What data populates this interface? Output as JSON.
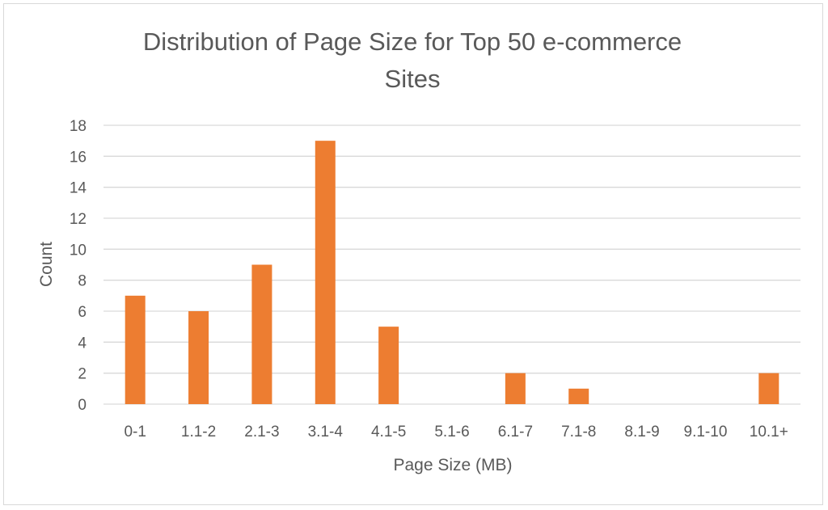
{
  "chart_data": {
    "type": "bar",
    "title_line1": "Distribution of Page Size for Top 50 e-commerce",
    "title_line2": "Sites",
    "xlabel": "Page Size (MB)",
    "ylabel": "Count",
    "categories": [
      "0-1",
      "1.1-2",
      "2.1-3",
      "3.1-4",
      "4.1-5",
      "5.1-6",
      "6.1-7",
      "7.1-8",
      "8.1-9",
      "9.1-10",
      "10.1+"
    ],
    "values": [
      7,
      6,
      9,
      17,
      5,
      0,
      2,
      1,
      0,
      0,
      2
    ],
    "ylim": [
      0,
      18
    ],
    "yticks": [
      0,
      2,
      4,
      6,
      8,
      10,
      12,
      14,
      16,
      18
    ],
    "grid": true,
    "legend": "none",
    "bar_color": "#ED7D31",
    "grid_color": "#D9D9D9",
    "text_color": "#595959"
  }
}
